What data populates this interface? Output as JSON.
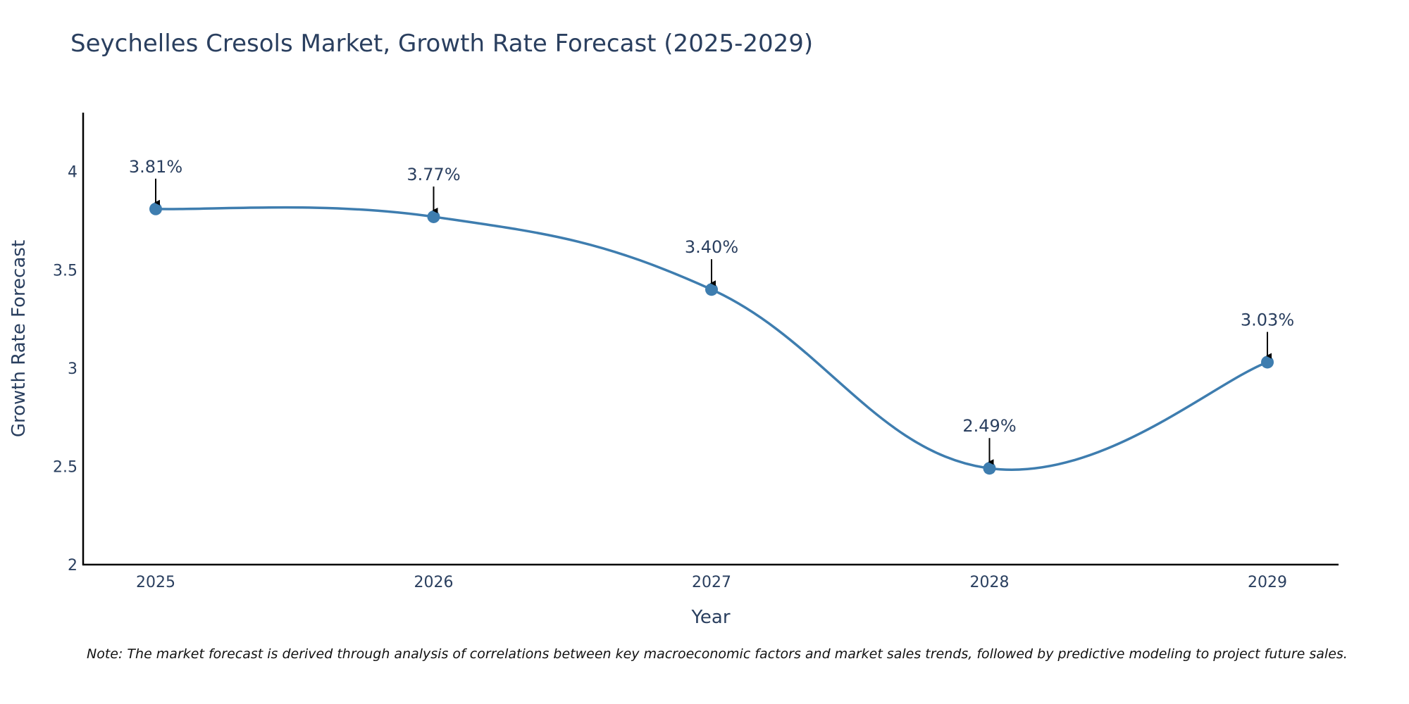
{
  "chart_data": {
    "type": "line",
    "title": "Seychelles Cresols Market, Growth Rate Forecast (2025-2029)",
    "xlabel": "Year",
    "ylabel": "Growth Rate Forecast",
    "categories": [
      "2025",
      "2026",
      "2027",
      "2028",
      "2029"
    ],
    "series": [
      {
        "name": "Growth Rate Forecast",
        "values": [
          3.81,
          3.77,
          3.4,
          2.49,
          3.03
        ]
      }
    ],
    "data_labels": [
      "3.81%",
      "3.77%",
      "3.40%",
      "2.49%",
      "3.03%"
    ],
    "ylim": [
      2,
      4.3
    ],
    "yticks": [
      2,
      2.5,
      3,
      3.5,
      4
    ],
    "ytick_labels": [
      "2",
      "2.5",
      "3",
      "3.5",
      "4"
    ],
    "grid": false,
    "line_shape": "spline",
    "colors": {
      "line": "#3e7daf",
      "marker": "#3e7daf",
      "arrow": "#000000",
      "text": "#2a3f5f",
      "axis": "#000000"
    }
  },
  "note": "Note: The market forecast is derived through analysis of correlations between key macroeconomic factors and market sales trends, followed by predictive modeling to project future sales."
}
